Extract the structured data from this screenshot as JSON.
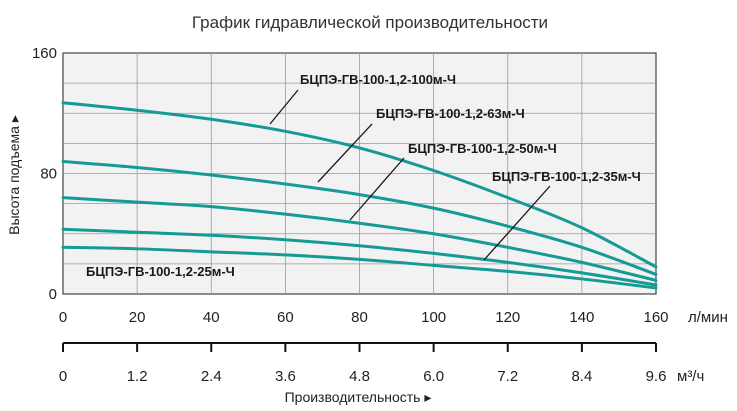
{
  "chart_data": {
    "type": "line",
    "title": "График гидравлической производительности",
    "ylabel": "Высота подъема",
    "xunit": "л/мин",
    "xlabel2": "Производительность",
    "xunit2": "м³/ч",
    "xlim": [
      0,
      160
    ],
    "ylim": [
      0,
      160
    ],
    "grid": true,
    "x_ticks": [
      "0",
      "20",
      "40",
      "60",
      "80",
      "100",
      "120",
      "140",
      "160"
    ],
    "y_ticks": [
      "0",
      "80",
      "160"
    ],
    "x2_ticks": [
      "0",
      "1.2",
      "2.4",
      "3.6",
      "4.8",
      "6.0",
      "7.2",
      "8.4",
      "9.6"
    ],
    "x": [
      0,
      20,
      40,
      60,
      80,
      100,
      120,
      140,
      160
    ],
    "series": [
      {
        "name": "БЦПЭ-ГВ-100-1,2-100м-Ч",
        "values": [
          127,
          122,
          116,
          108,
          97,
          82,
          64,
          44,
          18
        ]
      },
      {
        "name": "БЦПЭ-ГВ-100-1,2-63м-Ч",
        "values": [
          88,
          84,
          79,
          73,
          66,
          57,
          45,
          31,
          13
        ]
      },
      {
        "name": "БЦПЭ-ГВ-100-1,2-50м-Ч",
        "values": [
          64,
          61,
          58,
          53,
          47,
          40,
          31,
          21,
          9
        ]
      },
      {
        "name": "БЦПЭ-ГВ-100-1,2-35м-Ч",
        "values": [
          43,
          41,
          39,
          36,
          32,
          27,
          21,
          14,
          6
        ]
      },
      {
        "name": "БЦПЭ-ГВ-100-1,2-25м-Ч",
        "values": [
          31,
          30,
          28,
          26,
          23,
          19,
          15,
          10,
          4
        ]
      }
    ],
    "colors": {
      "curve": "#169a96",
      "plot_bg": "#f2f2f2"
    }
  }
}
